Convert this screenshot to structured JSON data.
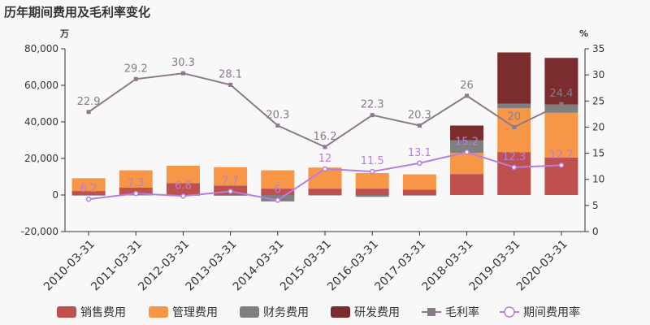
{
  "chart_data": {
    "type": "bar",
    "title": "历年期间费用及毛利率变化",
    "left_unit": "万",
    "right_unit": "%",
    "categories": [
      "2010-03-31",
      "2011-03-31",
      "2012-03-31",
      "2013-03-31",
      "2014-03-31",
      "2015-03-31",
      "2016-03-31",
      "2017-03-31",
      "2018-03-31",
      "2019-03-31",
      "2020-03-31"
    ],
    "ylim_left": [
      -20000,
      80000
    ],
    "yticks_left": [
      "-20,000",
      "0",
      "20,000",
      "40,000",
      "60,000",
      "80,000"
    ],
    "ylim_right": [
      0,
      35
    ],
    "yticks_right": [
      "0",
      "5",
      "10",
      "15",
      "20",
      "25",
      "30",
      "35"
    ],
    "bar_series": [
      {
        "name": "销售费用",
        "color": "#c0504d",
        "values": [
          2200,
          4000,
          6500,
          5200,
          3500,
          3500,
          3500,
          3000,
          11500,
          23500,
          20500
        ]
      },
      {
        "name": "管理费用",
        "color": "#f79646",
        "values": [
          7000,
          9500,
          9500,
          10000,
          10000,
          11500,
          8500,
          8300,
          11500,
          24000,
          24500
        ]
      },
      {
        "name": "财务费用",
        "color": "#7f7f7f",
        "values": [
          -300,
          -200,
          -400,
          -400,
          -3500,
          -200,
          -1000,
          -300,
          7000,
          2500,
          4500
        ]
      },
      {
        "name": "研发费用",
        "color": "#7b2c2c",
        "values": [
          0,
          0,
          0,
          0,
          0,
          0,
          0,
          0,
          8000,
          28000,
          25500
        ]
      }
    ],
    "line_series": [
      {
        "name": "毛利率",
        "color": "#8c7a8c",
        "marker": "square",
        "values": [
          22.9,
          29.2,
          30.3,
          28.1,
          20.3,
          16.2,
          22.3,
          20.3,
          26,
          20,
          24.4
        ],
        "labels": [
          "22.9",
          "29.2",
          "30.3",
          "28.1",
          "20.3",
          "16.2",
          "22.3",
          "20.3",
          "26",
          "20",
          "24.4"
        ]
      },
      {
        "name": "期间费用率",
        "color": "#b77ee0",
        "marker": "circle",
        "values": [
          6.2,
          7.3,
          6.8,
          7.7,
          6,
          12,
          11.5,
          13.1,
          15.2,
          12.3,
          12.7
        ],
        "labels": [
          "6.2",
          "7.3",
          "6.8",
          "7.7",
          "6",
          "12",
          "11.5",
          "13.1",
          "15.2",
          "12.3",
          "12.7"
        ]
      }
    ],
    "legend_position": "bottom",
    "grid": false
  }
}
